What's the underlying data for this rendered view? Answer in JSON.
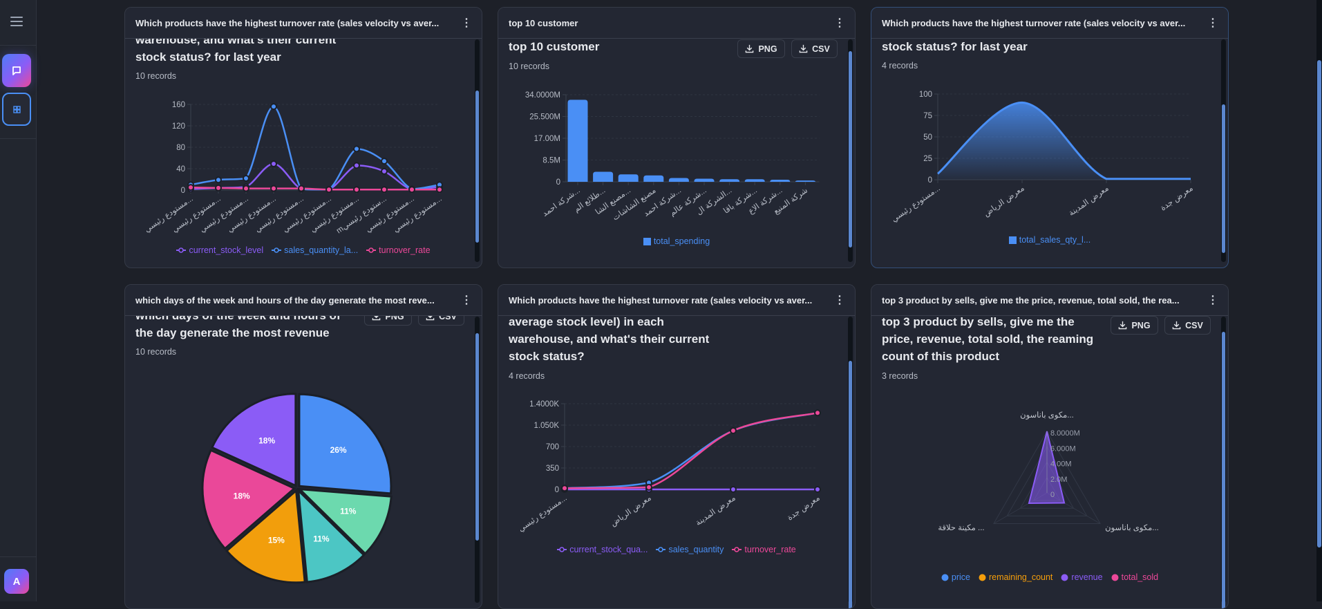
{
  "sidebar": {
    "menu_icon": "hamburger-icon",
    "nav": [
      {
        "icon": "chat-icon",
        "active": true
      },
      {
        "icon": "grid-icon",
        "active": false
      }
    ],
    "avatar_letter": "A"
  },
  "buttons": {
    "png": "PNG",
    "csv": "CSV"
  },
  "cards": [
    {
      "header": "Which products have the highest turnover rate (sales velocity vs aver...",
      "title": "Which products have the highest turnover rate (sales velocity vs average stock level) in each warehouse, and what's their current stock status? for last year",
      "records": "10 records",
      "has_buttons": false,
      "selected": false
    },
    {
      "header": "top 10 customer",
      "title": "top 10 customer",
      "records": "10 records",
      "has_buttons": true,
      "selected": false
    },
    {
      "header": "Which products have the highest turnover rate (sales velocity vs aver...",
      "title": "Which products have the highest turnover rate (sales velocity vs average stock level) in each warehouse, and what's their current stock status? for last year",
      "records": "4 records",
      "has_buttons": false,
      "selected": true
    },
    {
      "header": "which days of the week and hours of the day generate the most reve...",
      "title": "which days of the week and hours of the day generate the most revenue",
      "records": "10 records",
      "has_buttons": true,
      "selected": false
    },
    {
      "header": "Which products have the highest turnover rate (sales velocity vs aver...",
      "title": "Which products have the highest turnover rate (sales velocity vs average stock level) in each warehouse, and what's their current stock status?",
      "records": "4 records",
      "has_buttons": false,
      "selected": false
    },
    {
      "header": "top 3 product by sells, give me the price, revenue, total sold, the rea...",
      "title": "top 3 product by sells, give me the price, revenue, total sold, the reaming count of this product",
      "records": "3 records",
      "has_buttons": true,
      "selected": false
    }
  ],
  "chart_data": [
    {
      "type": "line",
      "categories": [
        "مستودع رئيسي...",
        "مستودع رئيسي...",
        "مستودع رئيسي...",
        "مستودع رئيسي...",
        "مستودع رئيسي...",
        "مستودع رئيسي...",
        "مستودع رئيسي...",
        "mستودع رئيسي...",
        "مستودع رئيسي...",
        "مستودع رئيسي..."
      ],
      "ylim": [
        0,
        160
      ],
      "yticks": [
        {
          "v": 0,
          "label": "0"
        },
        {
          "v": 40,
          "label": "40"
        },
        {
          "v": 80,
          "label": "80"
        },
        {
          "v": 120,
          "label": "120"
        },
        {
          "v": 160,
          "label": "160"
        }
      ],
      "series": [
        {
          "name": "current_stock_level",
          "color": "#8b5cf6",
          "values": [
            2,
            4,
            6,
            49,
            2,
            1,
            46,
            35,
            1,
            6
          ]
        },
        {
          "name": "sales_quantity_la...",
          "color": "#4a8ff5",
          "values": [
            10,
            19,
            22,
            156,
            2,
            1,
            77,
            54,
            2,
            10
          ]
        },
        {
          "name": "turnover_rate",
          "color": "#ec4899",
          "values": [
            5,
            4,
            3,
            3,
            3,
            1,
            1,
            1,
            1,
            1
          ]
        }
      ],
      "legend": "bottom",
      "grid": true
    },
    {
      "type": "bar",
      "categories": [
        "شركة احمد...",
        "طلائع الم...",
        "مصنع الشا...",
        "مصنع الشاشات",
        "شركة احمد...",
        "شركة عالم...",
        "الشركة ال...",
        "شركة باقا...",
        "شركة الاع...",
        "شركة المنيع"
      ],
      "ylim": [
        0,
        34000000
      ],
      "yticks": [
        {
          "v": 0,
          "label": "0"
        },
        {
          "v": 8500000,
          "label": "8.5M"
        },
        {
          "v": 17000000,
          "label": "17.00M"
        },
        {
          "v": 25500000,
          "label": "25.500M"
        },
        {
          "v": 34000000,
          "label": "34.0000M"
        }
      ],
      "series": [
        {
          "name": "total_spending",
          "color": "#4a8ff5",
          "values": [
            32000000,
            3900000,
            2900000,
            2500000,
            1500000,
            1200000,
            1000000,
            1000000,
            800000,
            500000
          ]
        }
      ],
      "legend": "bottom",
      "grid": true
    },
    {
      "type": "area",
      "categories": [
        "مستودع رئيسي...",
        "معرض الرياض",
        "معرض المدينة",
        "معرض جدة"
      ],
      "ylim": [
        0,
        100
      ],
      "yticks": [
        {
          "v": 0,
          "label": "0"
        },
        {
          "v": 25,
          "label": "25"
        },
        {
          "v": 50,
          "label": "50"
        },
        {
          "v": 75,
          "label": "75"
        },
        {
          "v": 100,
          "label": "100"
        }
      ],
      "series": [
        {
          "name": "total_sales_qty_l...",
          "color": "#4a8ff5",
          "values": [
            7,
            90,
            1,
            1
          ]
        }
      ],
      "legend": "bottom",
      "grid": true
    },
    {
      "type": "pie",
      "values": [
        26,
        11,
        11,
        15,
        18,
        18
      ],
      "labels": [
        "26%",
        "11%",
        "11%",
        "15%",
        "18%",
        "18%"
      ],
      "colors": [
        "#4a8ff5",
        "#6cd9ae",
        "#4cc6c4",
        "#f29e0c",
        "#ea4899",
        "#8b5cf6"
      ]
    },
    {
      "type": "line",
      "categories": [
        "مستودع رئيسي...",
        "معرض الرياض",
        "معرض المدينة",
        "معرض جدة"
      ],
      "ylim": [
        0,
        1400
      ],
      "yticks": [
        {
          "v": 0,
          "label": "0"
        },
        {
          "v": 350,
          "label": "350"
        },
        {
          "v": 700,
          "label": "700"
        },
        {
          "v": 1050,
          "label": "1.050K"
        },
        {
          "v": 1400,
          "label": "1.4000K"
        }
      ],
      "series": [
        {
          "name": "current_stock_qua...",
          "color": "#8b5cf6",
          "values": [
            0,
            0,
            0,
            0
          ]
        },
        {
          "name": "sales_quantity",
          "color": "#4a8ff5",
          "values": [
            20,
            110,
            960,
            1250
          ]
        },
        {
          "name": "turnover_rate",
          "color": "#ec4899",
          "values": [
            20,
            35,
            960,
            1250
          ]
        }
      ],
      "legend": "bottom",
      "grid": true
    },
    {
      "type": "radar",
      "axes": [
        "مكوى باناسون...",
        "مكوى باناسون...",
        "مكينة حلاقة ..."
      ],
      "rlim": [
        0,
        8000000
      ],
      "rticks": [
        {
          "v": 0,
          "label": "0"
        },
        {
          "v": 2000000,
          "label": "2.0M"
        },
        {
          "v": 4000000,
          "label": "4.00M"
        },
        {
          "v": 6000000,
          "label": "6.000M"
        },
        {
          "v": 8000000,
          "label": "8.0000M"
        }
      ],
      "series": [
        {
          "name": "price",
          "color": "#4a8ff5",
          "values": [
            0,
            0,
            0
          ]
        },
        {
          "name": "remaining_count",
          "color": "#f59e0b",
          "values": [
            0,
            0,
            0
          ]
        },
        {
          "name": "revenue",
          "color": "#8b5cf6",
          "values": [
            8000000,
            2600000,
            2700000
          ]
        },
        {
          "name": "total_sold",
          "color": "#ec4899",
          "values": [
            0,
            0,
            0
          ]
        }
      ],
      "legend": "bottom"
    }
  ]
}
